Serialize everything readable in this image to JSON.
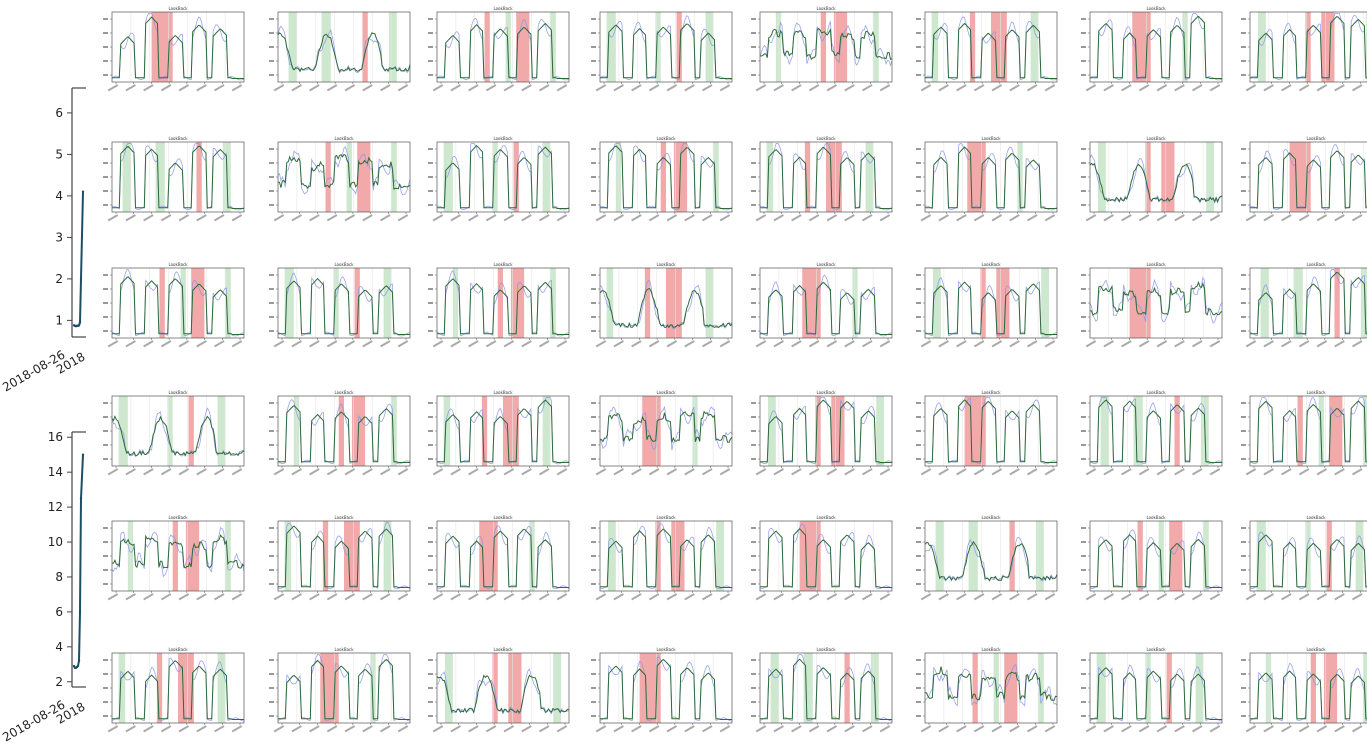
{
  "palette": {
    "anomaly_red": "#ef9a9a",
    "normal_green": "#a5d6a7",
    "actual_line": "#2e6b3a",
    "predicted_line": "#8a93e8",
    "dark_series": "#1b4f66",
    "axis": "#444444",
    "grid": "#e6e6e6"
  },
  "chart_data": [
    {
      "id": "left-top",
      "type": "line",
      "title": "",
      "x_ticks": [
        "2018-08-26",
        "2018"
      ],
      "y_ticks": [
        "1",
        "2",
        "3",
        "4",
        "5",
        "6"
      ],
      "ylim": [
        0.6,
        6.6
      ],
      "grid": false,
      "series": [
        {
          "values": [
            0.88,
            0.87,
            0.86,
            0.87,
            0.87,
            0.88,
            0.95,
            2.0,
            4.1
          ]
        }
      ]
    },
    {
      "id": "left-bottom",
      "type": "line",
      "title": "",
      "x_ticks": [
        "2018-08-26",
        "2018"
      ],
      "y_ticks": [
        "2",
        "4",
        "6",
        "8",
        "10",
        "12",
        "14",
        "16"
      ],
      "ylim": [
        1.7,
        16.3
      ],
      "grid": false,
      "series": [
        {
          "values": [
            2.9,
            2.8,
            2.8,
            2.85,
            2.9,
            3.2,
            6.0,
            12.5,
            15.0
          ]
        }
      ]
    },
    {
      "id": "thumbnail-grid",
      "type": "line",
      "rows": 6,
      "cols": 8,
      "panel_title": "LookBack",
      "x_tick_count": 8,
      "series_names": [
        "actual",
        "predicted"
      ],
      "variants": [
        "peaks",
        "peaks",
        "peaks",
        "smooth",
        "noisy",
        "peaks",
        "wide",
        "peaks"
      ],
      "bands_by_col": [
        [
          [
            "r",
            0.3,
            0.46
          ]
        ],
        [
          [
            "g",
            0.08,
            0.14
          ],
          [
            "g",
            0.33,
            0.4
          ],
          [
            "r",
            0.64,
            0.68
          ],
          [
            "g",
            0.84,
            0.9
          ]
        ],
        [
          [
            "r",
            0.36,
            0.4
          ],
          [
            "g",
            0.52,
            0.56
          ],
          [
            "r",
            0.6,
            0.7
          ],
          [
            "g",
            0.86,
            0.9
          ]
        ],
        [
          [
            "g",
            0.05,
            0.12
          ],
          [
            "g",
            0.42,
            0.46
          ],
          [
            "r",
            0.58,
            0.62
          ],
          [
            "g",
            0.8,
            0.86
          ]
        ],
        [
          [
            "g",
            0.12,
            0.16
          ],
          [
            "r",
            0.46,
            0.5
          ],
          [
            "r",
            0.56,
            0.66
          ],
          [
            "g",
            0.86,
            0.9
          ]
        ],
        [
          [
            "g",
            0.05,
            0.1
          ],
          [
            "r",
            0.34,
            0.38
          ],
          [
            "r",
            0.5,
            0.62
          ],
          [
            "g",
            0.8,
            0.86
          ]
        ],
        [
          [
            "r",
            0.32,
            0.46
          ],
          [
            "g",
            0.7,
            0.74
          ]
        ],
        [
          [
            "g",
            0.06,
            0.12
          ],
          [
            "r",
            0.42,
            0.46
          ],
          [
            "r",
            0.54,
            0.64
          ],
          [
            "g",
            0.88,
            0.94
          ]
        ]
      ]
    }
  ]
}
